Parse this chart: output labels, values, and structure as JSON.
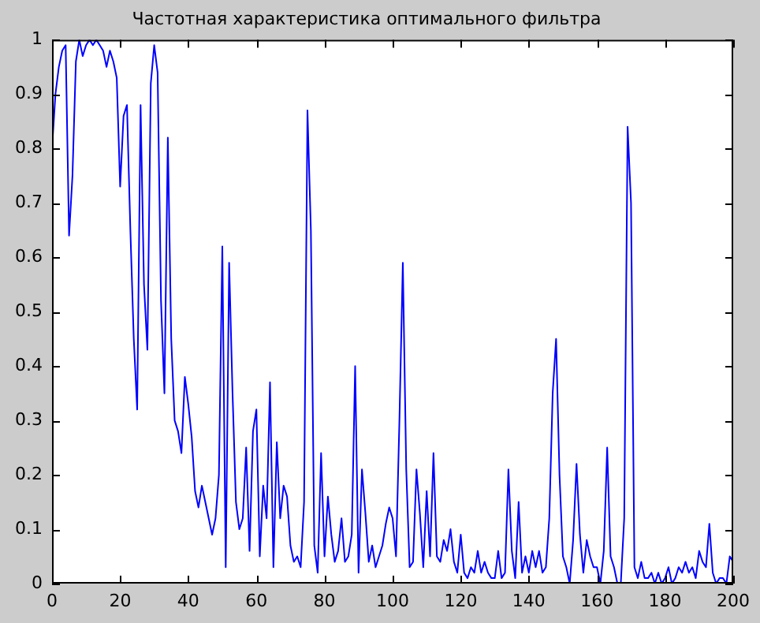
{
  "chart_data": {
    "type": "line",
    "title": "Частотная характеристика оптимального фильтра",
    "x": [
      0,
      1,
      2,
      3,
      4,
      5,
      6,
      7,
      8,
      9,
      10,
      11,
      12,
      13,
      14,
      15,
      16,
      17,
      18,
      19,
      20,
      21,
      22,
      23,
      24,
      25,
      26,
      27,
      28,
      29,
      30,
      31,
      32,
      33,
      34,
      35,
      36,
      37,
      38,
      39,
      40,
      41,
      42,
      43,
      44,
      45,
      46,
      47,
      48,
      49,
      50,
      51,
      52,
      53,
      54,
      55,
      56,
      57,
      58,
      59,
      60,
      61,
      62,
      63,
      64,
      65,
      66,
      67,
      68,
      69,
      70,
      71,
      72,
      73,
      74,
      75,
      76,
      77,
      78,
      79,
      80,
      81,
      82,
      83,
      84,
      85,
      86,
      87,
      88,
      89,
      90,
      91,
      92,
      93,
      94,
      95,
      96,
      97,
      98,
      99,
      100,
      101,
      102,
      103,
      104,
      105,
      106,
      107,
      108,
      109,
      110,
      111,
      112,
      113,
      114,
      115,
      116,
      117,
      118,
      119,
      120,
      121,
      122,
      123,
      124,
      125,
      126,
      127,
      128,
      129,
      130,
      131,
      132,
      133,
      134,
      135,
      136,
      137,
      138,
      139,
      140,
      141,
      142,
      143,
      144,
      145,
      146,
      147,
      148,
      149,
      150,
      151,
      152,
      153,
      154,
      155,
      156,
      157,
      158,
      159,
      160,
      161,
      162,
      163,
      164,
      165,
      166,
      167,
      168,
      169,
      170,
      171,
      172,
      173,
      174,
      175,
      176,
      177,
      178,
      179,
      180,
      181,
      182,
      183,
      184,
      185,
      186,
      187,
      188,
      189,
      190,
      191,
      192,
      193,
      194,
      195,
      196,
      197,
      198,
      199,
      200
    ],
    "series": [
      {
        "color": "#0000ff",
        "values": [
          0.8,
          0.9,
          0.95,
          0.98,
          0.99,
          0.64,
          0.75,
          0.96,
          1.0,
          0.97,
          0.99,
          1.0,
          0.99,
          1.0,
          0.99,
          0.98,
          0.95,
          0.98,
          0.96,
          0.93,
          0.73,
          0.86,
          0.88,
          0.65,
          0.45,
          0.32,
          0.88,
          0.55,
          0.43,
          0.92,
          0.99,
          0.94,
          0.52,
          0.35,
          0.82,
          0.45,
          0.3,
          0.28,
          0.24,
          0.38,
          0.33,
          0.27,
          0.17,
          0.14,
          0.18,
          0.15,
          0.12,
          0.09,
          0.12,
          0.2,
          0.62,
          0.03,
          0.59,
          0.35,
          0.15,
          0.1,
          0.12,
          0.25,
          0.06,
          0.28,
          0.32,
          0.05,
          0.18,
          0.12,
          0.37,
          0.03,
          0.26,
          0.12,
          0.18,
          0.16,
          0.07,
          0.04,
          0.05,
          0.03,
          0.15,
          0.87,
          0.65,
          0.07,
          0.02,
          0.24,
          0.05,
          0.16,
          0.09,
          0.04,
          0.06,
          0.12,
          0.04,
          0.05,
          0.09,
          0.4,
          0.02,
          0.21,
          0.13,
          0.04,
          0.07,
          0.03,
          0.05,
          0.07,
          0.11,
          0.14,
          0.12,
          0.05,
          0.3,
          0.59,
          0.21,
          0.03,
          0.04,
          0.21,
          0.13,
          0.03,
          0.17,
          0.05,
          0.24,
          0.05,
          0.04,
          0.08,
          0.06,
          0.1,
          0.04,
          0.02,
          0.09,
          0.02,
          0.01,
          0.03,
          0.02,
          0.06,
          0.02,
          0.04,
          0.02,
          0.01,
          0.01,
          0.06,
          0.01,
          0.02,
          0.21,
          0.06,
          0.01,
          0.15,
          0.02,
          0.05,
          0.02,
          0.06,
          0.03,
          0.06,
          0.02,
          0.03,
          0.12,
          0.35,
          0.45,
          0.2,
          0.05,
          0.03,
          0.0,
          0.08,
          0.22,
          0.09,
          0.02,
          0.08,
          0.05,
          0.03,
          0.03,
          0.0,
          0.06,
          0.25,
          0.05,
          0.03,
          0.0,
          0.0,
          0.12,
          0.84,
          0.7,
          0.03,
          0.01,
          0.04,
          0.01,
          0.01,
          0.02,
          0.0,
          0.02,
          0.0,
          0.01,
          0.03,
          0.0,
          0.01,
          0.03,
          0.02,
          0.04,
          0.02,
          0.03,
          0.01,
          0.06,
          0.04,
          0.03,
          0.11,
          0.02,
          0.0,
          0.01,
          0.01,
          0.0,
          0.05,
          0.04
        ]
      }
    ],
    "xlim": [
      0,
      200
    ],
    "xticks": [
      0,
      20,
      40,
      60,
      80,
      100,
      120,
      140,
      160,
      180,
      200
    ],
    "ylim": [
      0,
      1
    ],
    "yticks": [
      0,
      0.1,
      0.2,
      0.3,
      0.4,
      0.5,
      0.6,
      0.7,
      0.8,
      0.9,
      1
    ],
    "legend": false,
    "grid": false,
    "marker": "none",
    "line_style": "solid"
  }
}
